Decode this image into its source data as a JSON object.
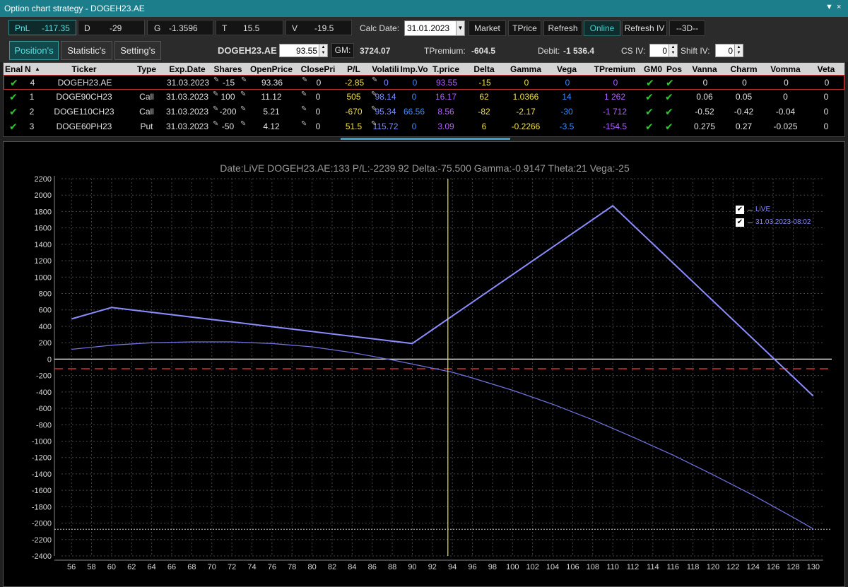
{
  "window": {
    "title": "Option chart strategy - DOGEH23.AE",
    "controls": [
      "▼",
      "×"
    ]
  },
  "summary": [
    {
      "label": "PnL",
      "value": "-117.35"
    },
    {
      "label": "D",
      "value": "-29"
    },
    {
      "label": "G",
      "value": "-1.3596"
    },
    {
      "label": "T",
      "value": "15.5"
    },
    {
      "label": "V",
      "value": "-19.5"
    }
  ],
  "calc_date": {
    "label": "Calc Date:",
    "value": "31.01.2023"
  },
  "buttons": {
    "market": "Market",
    "tprice": "TPrice",
    "refresh": "Refresh",
    "online": "Online",
    "refresh_iv": "Refresh IV",
    "three_d": "--3D--"
  },
  "tabs": [
    "Position's",
    "Statistic's",
    "Setting's"
  ],
  "info": {
    "ticker": "DOGEH23.AE",
    "price": "93.55",
    "gm_label": "GM:",
    "gm_value": "3724.07",
    "tpremium_label": "TPremium:",
    "tpremium_value": "-604.5",
    "debit_label": "Debit:",
    "debit_value": "-1 536.4",
    "csiv_label": "CS IV:",
    "csiv_value": "0",
    "shiftiv_label": "Shift IV:",
    "shiftiv_value": "0"
  },
  "table": {
    "columns": [
      "Enal",
      "N",
      "Ticker",
      "Type",
      "Exp.Date",
      "Shares",
      "OpenPrice",
      "ClosePri",
      "P/L",
      "Volatili",
      "Imp.Vo",
      "T.price",
      "Delta",
      "Gamma",
      "Vega",
      "TPremium",
      "GM0",
      "Pos",
      "Vanna",
      "Charm",
      "Vomma",
      "Veta"
    ],
    "sort_indicator": "▲",
    "rows": [
      {
        "n": "4",
        "ticker": "DOGEH23.AE",
        "type": "",
        "exp": "31.03.2023",
        "shares": "-15",
        "open": "93.36",
        "close": "0",
        "pl": "-2.85",
        "vol": "0",
        "impvol": "0",
        "tprice": "93.55",
        "delta": "-15",
        "gamma": "0",
        "vega": "0",
        "tprem": "0",
        "vanna": "0",
        "charm": "0",
        "vomma": "0",
        "veta": "0"
      },
      {
        "n": "1",
        "ticker": "DOGE90CH23",
        "type": "Call",
        "exp": "31.03.2023",
        "shares": "100",
        "open": "11.12",
        "close": "0",
        "pl": "505",
        "vol": "98.14",
        "impvol": "0",
        "tprice": "16.17",
        "delta": "62",
        "gamma": "1.0366",
        "vega": "14",
        "tprem": "1 262",
        "vanna": "0.06",
        "charm": "0.05",
        "vomma": "0",
        "veta": "0"
      },
      {
        "n": "2",
        "ticker": "DOGE110CH23",
        "type": "Call",
        "exp": "31.03.2023",
        "shares": "-200",
        "open": "5.21",
        "close": "0",
        "pl": "-670",
        "vol": "95.34",
        "impvol": "66.56",
        "tprice": "8.56",
        "delta": "-82",
        "gamma": "-2.17",
        "vega": "-30",
        "tprem": "-1 712",
        "vanna": "-0.52",
        "charm": "-0.42",
        "vomma": "-0.04",
        "veta": "0"
      },
      {
        "n": "3",
        "ticker": "DOGE60PH23",
        "type": "Put",
        "exp": "31.03.2023",
        "shares": "-50",
        "open": "4.12",
        "close": "0",
        "pl": "51.5",
        "vol": "115.72",
        "impvol": "0",
        "tprice": "3.09",
        "delta": "6",
        "gamma": "-0.2266",
        "vega": "-3.5",
        "tprem": "-154.5",
        "vanna": "0.275",
        "charm": "0.27",
        "vomma": "-0.025",
        "veta": "0"
      }
    ]
  },
  "colors": {
    "accent": "#1b7e8a",
    "check": "#2ec82e",
    "pl_yellow": "#f0e040",
    "vol_blue": "#7a8cff",
    "tprice_purple": "#b060ff",
    "expiry_line": "#8c8cff",
    "live_line": "#7070e0",
    "cursor_line": "#e8e840",
    "breakeven_line": "#d03030"
  },
  "chart_data": {
    "type": "line",
    "title": "Date:LiVE  DOGEH23.AE:133  P/L:-2239.92  Delta:-75.500  Gamma:-0.9147  Theta:21  Vega:-25",
    "xlim": [
      55,
      131
    ],
    "ylim": [
      -2400,
      2200
    ],
    "x_ticks": [
      56,
      58,
      60,
      62,
      64,
      66,
      68,
      70,
      72,
      74,
      76,
      78,
      80,
      82,
      84,
      86,
      88,
      90,
      92,
      94,
      96,
      98,
      100,
      102,
      104,
      106,
      108,
      110,
      112,
      114,
      116,
      118,
      120,
      122,
      124,
      126,
      128,
      130
    ],
    "y_ticks": [
      2200,
      2000,
      1800,
      1600,
      1400,
      1200,
      1000,
      800,
      600,
      400,
      200,
      0,
      -200,
      -400,
      -600,
      -800,
      -1000,
      -1200,
      -1400,
      -1600,
      -1800,
      -2000,
      -2200,
      -2400
    ],
    "grid": true,
    "legend_position": "top-right",
    "cursor_x": 93.55,
    "reference_lines": {
      "zero": 0,
      "breakeven": -117,
      "floor": -2075
    },
    "series": [
      {
        "name": "LiVE",
        "x": [
          56,
          60,
          64,
          68,
          72,
          76,
          80,
          84,
          88,
          90,
          92,
          94,
          96,
          100,
          104,
          108,
          112,
          116,
          120,
          124,
          128,
          130
        ],
        "y": [
          120,
          170,
          200,
          210,
          210,
          190,
          150,
          80,
          -10,
          -60,
          -110,
          -160,
          -230,
          -380,
          -550,
          -740,
          -950,
          -1170,
          -1410,
          -1660,
          -1930,
          -2070
        ]
      },
      {
        "name": "31.03.2023-08:02",
        "x": [
          56,
          60,
          90,
          110,
          130
        ],
        "y": [
          490,
          630,
          190,
          1870,
          -450
        ]
      }
    ]
  }
}
